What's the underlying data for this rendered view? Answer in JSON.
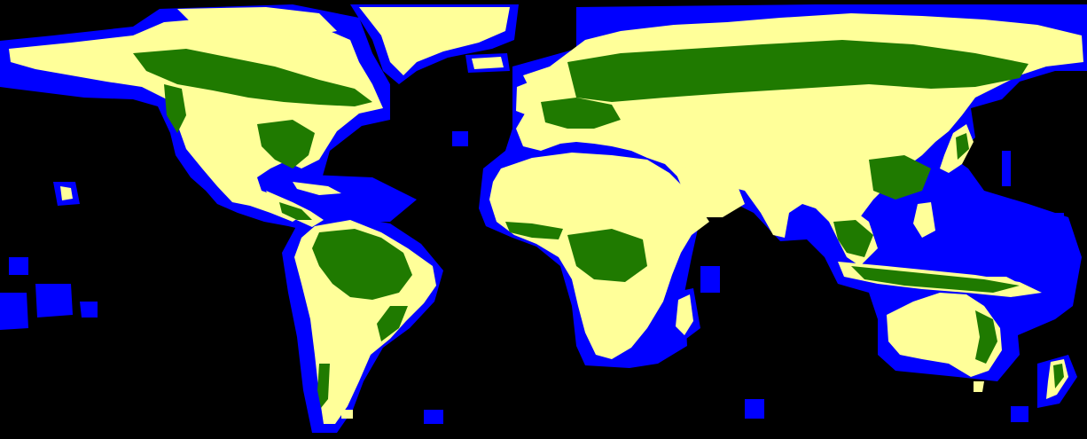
{
  "map": {
    "projection": "equirectangular",
    "extent": {
      "lon": [
        -180,
        180
      ],
      "lat": [
        -60,
        85
      ]
    },
    "classes": [
      {
        "name": "no-data",
        "color": "#000000"
      },
      {
        "name": "water-buffer",
        "color": "#0000ff"
      },
      {
        "name": "non-forest",
        "color": "#ffff99"
      },
      {
        "name": "forest",
        "color": "#1f7a00"
      }
    ]
  }
}
